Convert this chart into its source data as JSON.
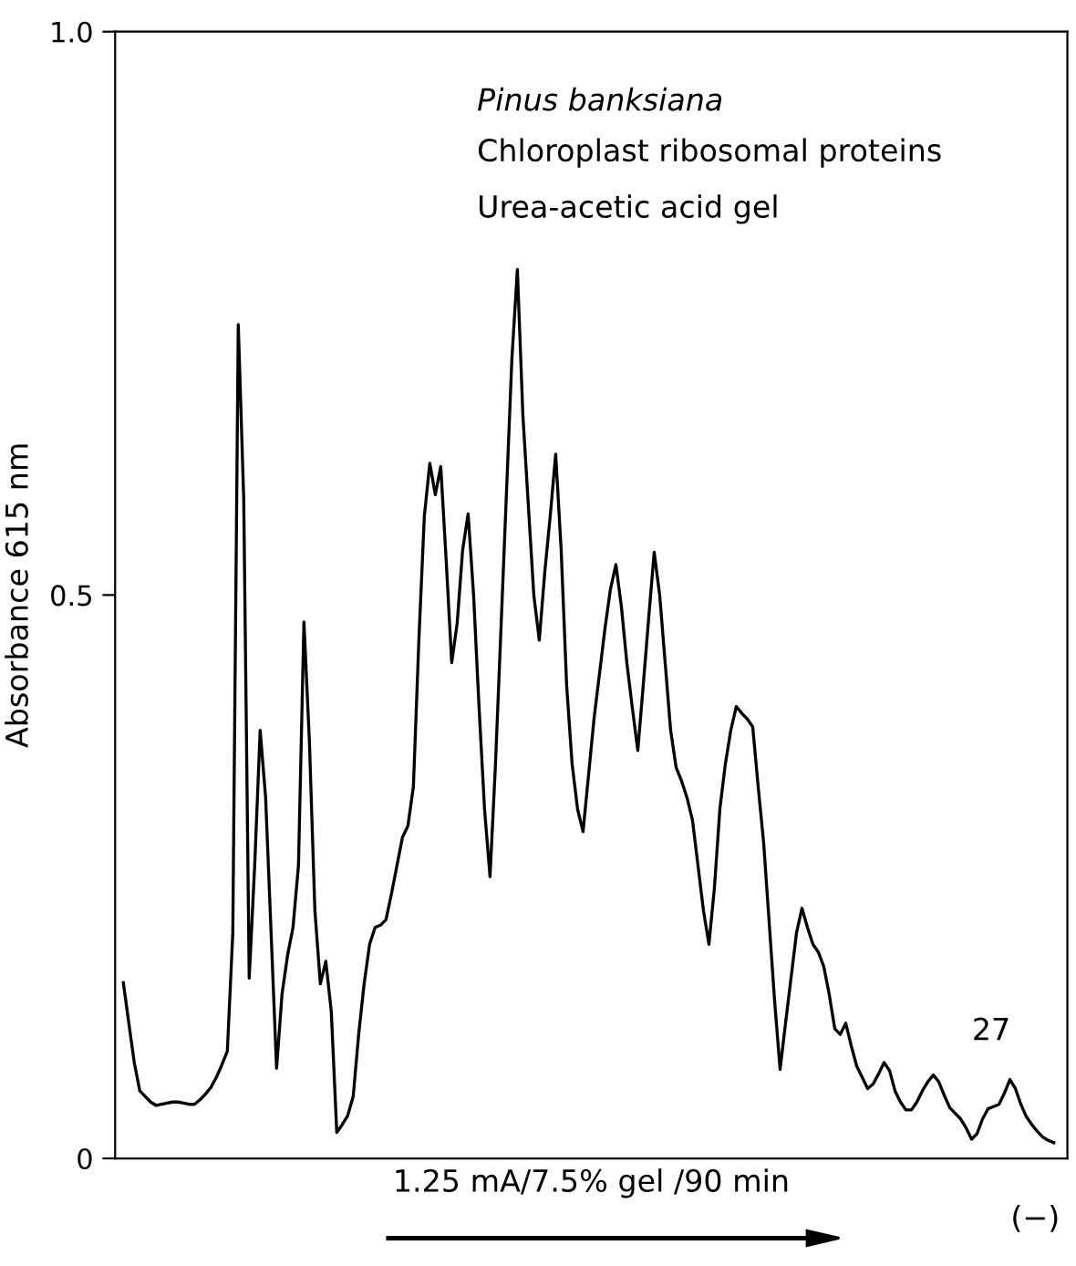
{
  "chart_data": {
    "type": "line",
    "title": "Pinus banksiana",
    "subtitle": "Chloroplast ribosomal proteins",
    "xlabel": "1.25 mA/7.5% gel /90 min",
    "ylabel": "Absorbance 615 nm",
    "annotations": [
      "Urea-acetic acid gel",
      "27",
      "(−)"
    ],
    "categories": [
      null,
      null,
      null,
      null,
      null,
      null,
      null,
      null,
      null,
      null,
      null,
      null,
      null,
      null,
      null,
      null,
      null,
      null,
      null,
      null,
      null,
      null,
      null,
      null,
      null,
      null,
      null,
      null,
      null,
      null,
      null,
      null,
      null,
      null,
      null,
      null,
      null,
      null,
      null,
      null,
      null,
      null,
      null,
      null,
      null,
      null,
      null,
      null,
      null,
      null,
      null,
      null,
      null,
      null,
      null,
      null,
      null,
      null,
      null,
      null,
      null,
      null,
      null,
      null,
      null,
      null,
      null,
      null,
      null,
      null,
      null,
      null,
      null,
      null,
      null,
      null,
      null,
      null,
      null,
      null,
      null,
      null,
      null,
      null,
      null,
      null,
      null,
      null,
      null,
      null,
      null,
      null,
      null,
      null,
      null,
      null,
      null,
      null,
      null,
      null,
      null,
      null,
      null,
      null,
      null,
      null,
      null,
      null,
      null,
      null,
      null,
      null,
      null,
      null,
      null,
      null,
      null,
      null,
      null,
      null,
      null,
      null,
      null,
      null,
      null,
      null,
      null,
      null,
      null,
      null,
      null,
      null,
      null,
      null,
      null,
      null,
      null,
      null,
      null,
      null,
      null,
      null,
      null,
      null,
      null,
      null,
      null,
      null,
      null,
      null,
      null,
      null,
      null,
      null,
      null,
      null,
      null,
      null,
      null,
      null,
      null,
      null,
      null,
      null,
      null,
      null,
      null,
      null,
      null,
      null,
      null
    ],
    "series": [
      {
        "color": "#000000",
        "values": [
          0.156,
          0.12,
          0.085,
          0.06,
          0.055,
          0.05,
          0.047,
          0.048,
          0.049,
          0.05,
          0.05,
          0.049,
          0.048,
          0.048,
          0.052,
          0.057,
          0.063,
          0.072,
          0.083,
          0.095,
          0.2,
          0.74,
          0.585,
          0.16,
          0.26,
          0.38,
          0.32,
          0.2,
          0.08,
          0.146,
          0.18,
          0.205,
          0.26,
          0.476,
          0.37,
          0.22,
          0.155,
          0.175,
          0.13,
          0.023,
          0.03,
          0.038,
          0.055,
          0.11,
          0.155,
          0.19,
          0.205,
          0.207,
          0.212,
          0.235,
          0.26,
          0.285,
          0.295,
          0.33,
          0.46,
          0.57,
          0.617,
          0.589,
          0.614,
          0.53,
          0.44,
          0.475,
          0.54,
          0.572,
          0.5,
          0.4,
          0.31,
          0.25,
          0.35,
          0.47,
          0.59,
          0.71,
          0.789,
          0.66,
          0.58,
          0.5,
          0.46,
          0.52,
          0.57,
          0.625,
          0.54,
          0.42,
          0.35,
          0.31,
          0.29,
          0.34,
          0.39,
          0.43,
          0.47,
          0.505,
          0.527,
          0.49,
          0.44,
          0.4,
          0.362,
          0.42,
          0.48,
          0.538,
          0.5,
          0.44,
          0.38,
          0.347,
          0.335,
          0.32,
          0.3,
          0.26,
          0.22,
          0.19,
          0.24,
          0.31,
          0.35,
          0.38,
          0.401,
          0.395,
          0.39,
          0.383,
          0.33,
          0.28,
          0.21,
          0.14,
          0.079,
          0.12,
          0.16,
          0.2,
          0.222,
          0.205,
          0.19,
          0.183,
          0.17,
          0.145,
          0.115,
          0.11,
          0.12,
          0.1,
          0.082,
          0.072,
          0.062,
          0.066,
          0.075,
          0.085,
          0.078,
          0.06,
          0.05,
          0.043,
          0.043,
          0.05,
          0.06,
          0.068,
          0.074,
          0.068,
          0.056,
          0.045,
          0.04,
          0.035,
          0.027,
          0.017,
          0.022,
          0.035,
          0.044,
          0.046,
          0.048,
          0.058,
          0.07,
          0.062,
          0.048,
          0.037,
          0.03,
          0.024,
          0.019,
          0.016,
          0.014
        ]
      }
    ],
    "ylim": [
      0,
      1.0
    ],
    "yticks": [
      0,
      0.5,
      {
        "value": 1.0,
        "label": "1.0"
      }
    ],
    "tick_labels": "y",
    "grid": false,
    "legend": false,
    "marker": "none",
    "line_style": "solid"
  }
}
